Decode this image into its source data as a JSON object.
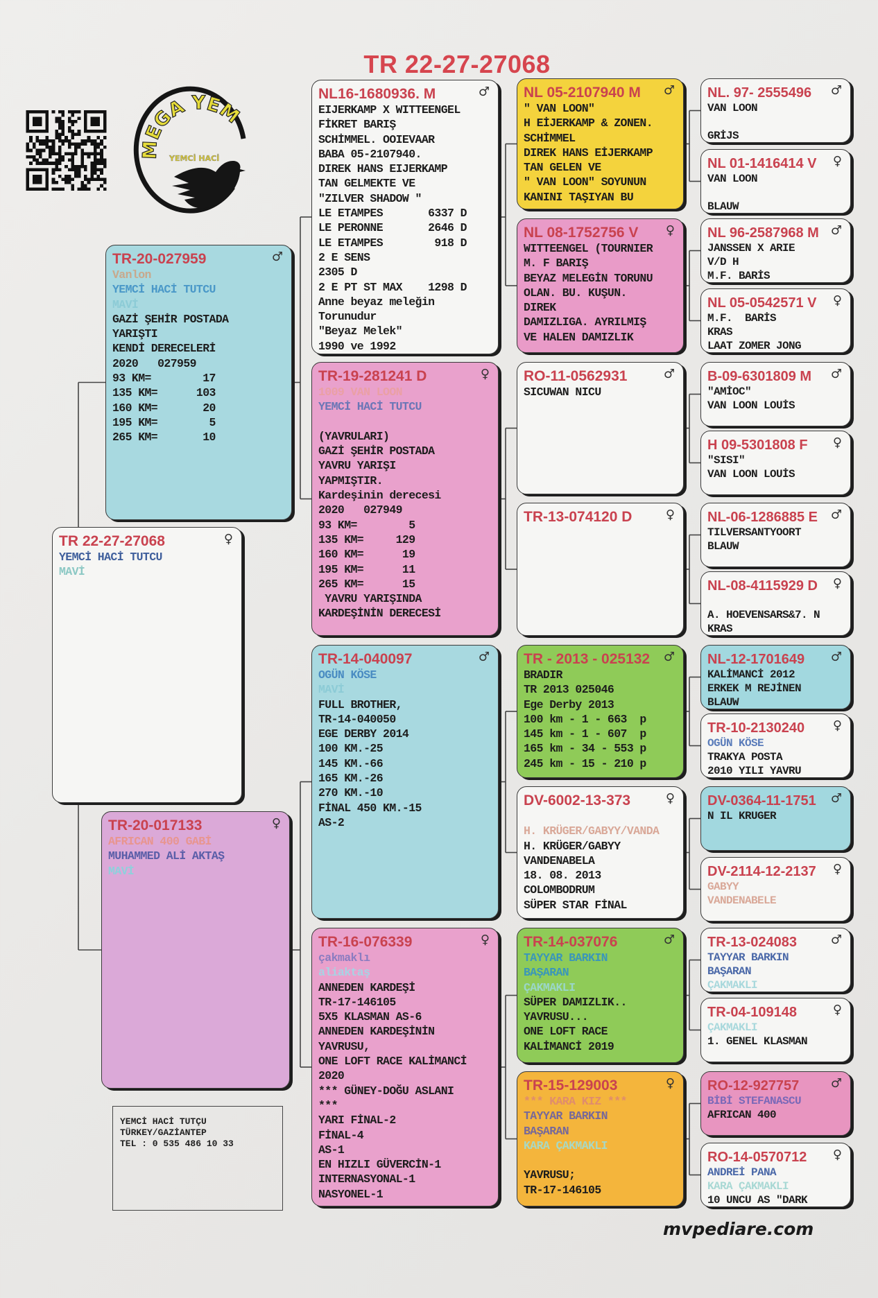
{
  "title": "TR 22-27-27068",
  "logo": {
    "top_text": "MEGA YEM",
    "sub_text": "YEMCİ HACİ"
  },
  "contact": {
    "lines": [
      "YEMCİ HACİ TUTÇU",
      "TÜRKEY/GAZİANTEP",
      "TEL : 0 535 486 10 33"
    ]
  },
  "footer": "mvpediare.com",
  "colors": {
    "ring": "#c9424f",
    "blue": "#a8d9e0",
    "pink": "#e9a1cc",
    "yellow": "#f4d33d",
    "green": "#8fcb58",
    "orange": "#f4b53c",
    "lavender": "#dba9d8",
    "white": "#f6f6f4"
  },
  "boxes": {
    "subject": {
      "ring": "TR 22-27-27068",
      "sex": "♀",
      "bg": "#f6f6f4",
      "lines": [
        {
          "t": "YEMCİ HACİ TUTCU",
          "c": "#3f5f9c"
        },
        {
          "t": "MAVİ",
          "c": "#8cc8c4"
        }
      ]
    },
    "s": {
      "ring": "TR-20-027959",
      "sex": "♂",
      "bg": "#a8d9e0",
      "lines": [
        {
          "t": "Vanlon",
          "c": "#c8a88c"
        },
        {
          "t": "YEMCİ HACİ TUTCU",
          "c": "#4a98c8"
        },
        {
          "t": "MAVİ",
          "c": "#8ccbd6"
        },
        {
          "t": "GAZİ ŞEHİR POSTADA"
        },
        {
          "t": "YARIŞTI"
        },
        {
          "t": "KENDİ DERECELERİ"
        },
        {
          "t": "2020   027959"
        },
        {
          "t": "93 KM=        17"
        },
        {
          "t": "135 KM=      103"
        },
        {
          "t": "160 KM=       20"
        },
        {
          "t": "195 KM=        5"
        },
        {
          "t": "265 KM=       10"
        }
      ]
    },
    "d": {
      "ring": "TR-20-017133",
      "sex": "♀",
      "bg": "#dba9d8",
      "lines": [
        {
          "t": "AFRICAN 400 GABİ",
          "c": "#e8958f"
        },
        {
          "t": "MUHAMMED ALİ AKTAŞ",
          "c": "#5a5ea8"
        },
        {
          "t": "MAVİ",
          "c": "#8fd0dc"
        }
      ]
    },
    "ss": {
      "ring": "NL16-1680936. M",
      "sex": "♂",
      "bg": "#f6f6f4",
      "lines": [
        {
          "t": "EIJERKAMP X WITTEENGEL"
        },
        {
          "t": "FİKRET BARIŞ"
        },
        {
          "t": "SCHİMMEL. OOIEVAAR"
        },
        {
          "t": "BABA 05-2107940."
        },
        {
          "t": "DIREK HANS EIJERKAMP"
        },
        {
          "t": "TAN GELMEKTE VE"
        },
        {
          "t": "\"ZILVER SHADOW \""
        },
        {
          "t": "LE ETAMPES       6337 D"
        },
        {
          "t": "LE PERONNE       2646 D"
        },
        {
          "t": "LE ETAMPES        918 D"
        },
        {
          "t": "2 E SENS"
        },
        {
          "t": "2305 D"
        },
        {
          "t": "2 E PT ST MAX    1298 D"
        },
        {
          "t": "Anne beyaz meleğin"
        },
        {
          "t": "Torunudur"
        },
        {
          "t": "\"Beyaz Melek\""
        },
        {
          "t": "1990 ve 1992"
        }
      ]
    },
    "sd": {
      "ring": "TR-19-281241 D",
      "sex": "♀",
      "bg": "#e9a1cc",
      "lines": [
        {
          "t": "1009 VAN LOON",
          "c": "#eaa0a4"
        },
        {
          "t": "YEMCİ HACİ TUTCU",
          "c": "#6a76b6"
        },
        {
          "t": " "
        },
        {
          "t": "(YAVRULARI)"
        },
        {
          "t": "GAZİ ŞEHİR POSTADA"
        },
        {
          "t": "YAVRU YARIŞI"
        },
        {
          "t": "YAPMIŞTIR."
        },
        {
          "t": "Kardeşinin derecesi"
        },
        {
          "t": "2020   027949"
        },
        {
          "t": "93 KM=        5"
        },
        {
          "t": "135 KM=     129"
        },
        {
          "t": "160 KM=      19"
        },
        {
          "t": "195 KM=      11"
        },
        {
          "t": "265 KM=      15"
        },
        {
          "t": " YAVRU YARIŞINDA"
        },
        {
          "t": "KARDEŞİNİN DERECESİ"
        }
      ]
    },
    "ds": {
      "ring": "TR-14-040097",
      "sex": "♂",
      "bg": "#a8d9e0",
      "lines": [
        {
          "t": "OGÜN KÖSE",
          "c": "#4a8cc2"
        },
        {
          "t": "MAVİ",
          "c": "#8ccbd6"
        },
        {
          "t": "FULL BROTHER,"
        },
        {
          "t": "TR-14-040050"
        },
        {
          "t": "EGE DERBY 2014"
        },
        {
          "t": "100 KM.-25"
        },
        {
          "t": "145 KM.-66"
        },
        {
          "t": "165 KM.-26"
        },
        {
          "t": "270 KM.-10"
        },
        {
          "t": "FİNAL 450 KM.-15"
        },
        {
          "t": "AS-2"
        }
      ]
    },
    "dd": {
      "ring": "TR-16-076339",
      "sex": "♀",
      "bg": "#e9a1cc",
      "lines": [
        {
          "t": "çakmaklı",
          "c": "#8a7cc0"
        },
        {
          "t": "aliaktaş",
          "c": "#a6d4e4"
        },
        {
          "t": "ANNEDEN KARDEŞİ"
        },
        {
          "t": "TR-17-146105"
        },
        {
          "t": "5X5 KLASMAN AS-6"
        },
        {
          "t": "ANNEDEN KARDEŞİNİN"
        },
        {
          "t": "YAVRUSU,"
        },
        {
          "t": "ONE LOFT RACE KALİMANCİ"
        },
        {
          "t": "2020"
        },
        {
          "t": "*** GÜNEY-DOĞU ASLANI"
        },
        {
          "t": "***"
        },
        {
          "t": "YARI FİNAL-2"
        },
        {
          "t": "FİNAL-4"
        },
        {
          "t": "AS-1"
        },
        {
          "t": "EN HIZLI GÜVERCİN-1"
        },
        {
          "t": "INTERNASYONAL-1"
        },
        {
          "t": "NASYONEL-1"
        }
      ]
    },
    "sss": {
      "ring": "NL 05-2107940 M",
      "sex": "♂",
      "bg": "#f4d33d",
      "lines": [
        {
          "t": "\" VAN LOON\""
        },
        {
          "t": "H EİJERKAMP & ZONEN."
        },
        {
          "t": "SCHİMMEL"
        },
        {
          "t": "DIREK HANS EİJERKAMP"
        },
        {
          "t": "TAN GELEN VE"
        },
        {
          "t": "\" VAN LOON\" SOYUNUN"
        },
        {
          "t": "KANINI TAŞIYAN BU"
        }
      ]
    },
    "ssd": {
      "ring": "NL 08-1752756 V",
      "sex": "♀",
      "bg": "#e99bc8",
      "lines": [
        {
          "t": "WITTEENGEL (TOURNIER"
        },
        {
          "t": "M. F BARIŞ"
        },
        {
          "t": "BEYAZ MELEGİN TORUNU"
        },
        {
          "t": "OLAN. BU. KUŞUN."
        },
        {
          "t": "DIREK"
        },
        {
          "t": "DAMIZLIGA. AYRILMIŞ"
        },
        {
          "t": "VE HALEN DAMIZLIK"
        }
      ]
    },
    "sds": {
      "ring": "RO-11-0562931",
      "sex": "♂",
      "bg": "#f6f6f4",
      "lines": [
        {
          "t": "SICUWAN NICU"
        }
      ]
    },
    "sdd": {
      "ring": "TR-13-074120 D",
      "sex": "♀",
      "bg": "#f6f6f4",
      "lines": []
    },
    "dss": {
      "ring": "TR - 2013 - 025132",
      "sex": "♂",
      "bg": "#8fcb58",
      "lines": [
        {
          "t": "BRADIR"
        },
        {
          "t": "TR 2013 025046"
        },
        {
          "t": "Ege Derby 2013"
        },
        {
          "t": "100 km - 1 - 663  p"
        },
        {
          "t": "145 km - 1 - 607  p"
        },
        {
          "t": "165 km - 34 - 553 p"
        },
        {
          "t": "245 km - 15 - 210 p"
        }
      ]
    },
    "dsd": {
      "ring": "DV-6002-13-373",
      "sex": "♀",
      "bg": "#f6f6f4",
      "lines": [
        {
          "t": " "
        },
        {
          "t": "H. KRÜGER/GABYY/VANDA",
          "c": "#d9a898"
        },
        {
          "t": "H. KRÜGER/GABYY"
        },
        {
          "t": "VANDENABELA"
        },
        {
          "t": "18. 08. 2013"
        },
        {
          "t": "COLOMBODRUM"
        },
        {
          "t": "SÜPER STAR FİNAL"
        }
      ]
    },
    "dds": {
      "ring": "TR-14-037076",
      "sex": "♂",
      "bg": "#8fcb58",
      "lines": [
        {
          "t": "TAYYAR BARKIN",
          "c": "#3a96ba"
        },
        {
          "t": "BAŞARAN",
          "c": "#3a96ba"
        },
        {
          "t": "ÇAKMAKLI",
          "c": "#9ad6c8"
        },
        {
          "t": "SÜPER DAMIZLIK.."
        },
        {
          "t": "YAVRUSU..."
        },
        {
          "t": "ONE LOFT RACE"
        },
        {
          "t": "KALİMANCİ 2019"
        }
      ]
    },
    "ddd": {
      "ring": "TR-15-129003",
      "sex": "♀",
      "bg": "#f4b53c",
      "lines": [
        {
          "t": "*** KARA KIZ ***",
          "c": "#e08c6c"
        },
        {
          "t": "TAYYAR BARKIN",
          "c": "#76689a"
        },
        {
          "t": "BAŞARAN",
          "c": "#76689a"
        },
        {
          "t": "KARA ÇAKMAKLI",
          "c": "#a8d8c4"
        },
        {
          "t": " "
        },
        {
          "t": "YAVRUSU;"
        },
        {
          "t": "TR-17-146105"
        }
      ]
    },
    "g1": {
      "ring": "NL. 97- 2555496",
      "sex": "♂",
      "bg": "#f6f6f4",
      "lines": [
        {
          "t": "VAN LOON"
        },
        {
          "t": " "
        },
        {
          "t": "GRİJS"
        }
      ]
    },
    "g2": {
      "ring": "NL 01-1416414 V",
      "sex": "♀",
      "bg": "#f6f6f4",
      "lines": [
        {
          "t": "VAN LOON"
        },
        {
          "t": " "
        },
        {
          "t": "BLAUW"
        }
      ]
    },
    "g3": {
      "ring": "NL 96-2587968 M",
      "sex": "♂",
      "bg": "#f6f6f4",
      "lines": [
        {
          "t": "JANSSEN X ARIE"
        },
        {
          "t": "V/D H"
        },
        {
          "t": "M.F. BARİS"
        }
      ]
    },
    "g4": {
      "ring": "NL 05-0542571 V",
      "sex": "♀",
      "bg": "#f6f6f4",
      "lines": [
        {
          "t": "M.F.  BARİS"
        },
        {
          "t": "KRAS"
        },
        {
          "t": "LAAT ZOMER JONG"
        }
      ]
    },
    "g5": {
      "ring": "B-09-6301809 M",
      "sex": "♂",
      "bg": "#f6f6f4",
      "lines": [
        {
          "t": "\"AMİOC\""
        },
        {
          "t": "VAN LOON LOUİS"
        }
      ]
    },
    "g6": {
      "ring": "H 09-5301808 F",
      "sex": "♀",
      "bg": "#f6f6f4",
      "lines": [
        {
          "t": "\"SISI\""
        },
        {
          "t": "VAN LOON LOUİS"
        }
      ]
    },
    "g7": {
      "ring": "NL-06-1286885 E",
      "sex": "♂",
      "bg": "#f6f6f4",
      "lines": [
        {
          "t": "TILVERSANTYOORT"
        },
        {
          "t": "BLAUW"
        }
      ]
    },
    "g8": {
      "ring": "NL-08-4115929 D",
      "sex": "♀",
      "bg": "#f6f6f4",
      "lines": [
        {
          "t": " "
        },
        {
          "t": "A. HOEVENSARS&7. N"
        },
        {
          "t": "KRAS"
        }
      ]
    },
    "g9": {
      "ring": "NL-12-1701649",
      "sex": "♂",
      "bg": "#a2d8df",
      "lines": [
        {
          "t": "KALİMANCİ 2012"
        },
        {
          "t": "ERKEK M REJİNEN"
        },
        {
          "t": "BLAUW"
        }
      ]
    },
    "g10": {
      "ring": "TR-10-2130240",
      "sex": "♀",
      "bg": "#f6f6f4",
      "lines": [
        {
          "t": "OGÜN KÖSE",
          "c": "#5a7cba"
        },
        {
          "t": "TRAKYA POSTA"
        },
        {
          "t": "2010 YILI YAVRU"
        }
      ]
    },
    "g11": {
      "ring": "DV-0364-11-1751",
      "sex": "♂",
      "bg": "#a2d8df",
      "lines": [
        {
          "t": "N IL KRUGER"
        }
      ]
    },
    "g12": {
      "ring": "DV-2114-12-2137",
      "sex": "♀",
      "bg": "#f6f6f4",
      "lines": [
        {
          "t": "GABYY",
          "c": "#d9a898"
        },
        {
          "t": "VANDENABELE",
          "c": "#d9a898"
        }
      ]
    },
    "g13": {
      "ring": "TR-13-024083",
      "sex": "♂",
      "bg": "#f6f6f4",
      "lines": [
        {
          "t": "TAYYAR BARKIN",
          "c": "#4a68a8"
        },
        {
          "t": "BAŞARAN",
          "c": "#4a68a8"
        },
        {
          "t": "ÇAKMAKLI",
          "c": "#a8d8dc"
        }
      ]
    },
    "g14": {
      "ring": "TR-04-109148",
      "sex": "♀",
      "bg": "#f6f6f4",
      "lines": [
        {
          "t": "ÇAKMAKLI",
          "c": "#a8d8dc"
        },
        {
          "t": "1. GENEL KLASMAN"
        }
      ]
    },
    "g15": {
      "ring": "RO-12-927757",
      "sex": "♂",
      "bg": "#e895c0",
      "lines": [
        {
          "t": "BİBİ STEFANASCU",
          "c": "#7a68b8"
        },
        {
          "t": "AFRICAN 400"
        }
      ]
    },
    "g16": {
      "ring": "RO-14-0570712",
      "sex": "♀",
      "bg": "#f6f6f4",
      "lines": [
        {
          "t": "ANDREİ PANA",
          "c": "#4a68a8"
        },
        {
          "t": "KARA ÇAKMAKLI",
          "c": "#a8d8d4"
        },
        {
          "t": "10 UNCU AS \"DARK"
        }
      ]
    }
  }
}
